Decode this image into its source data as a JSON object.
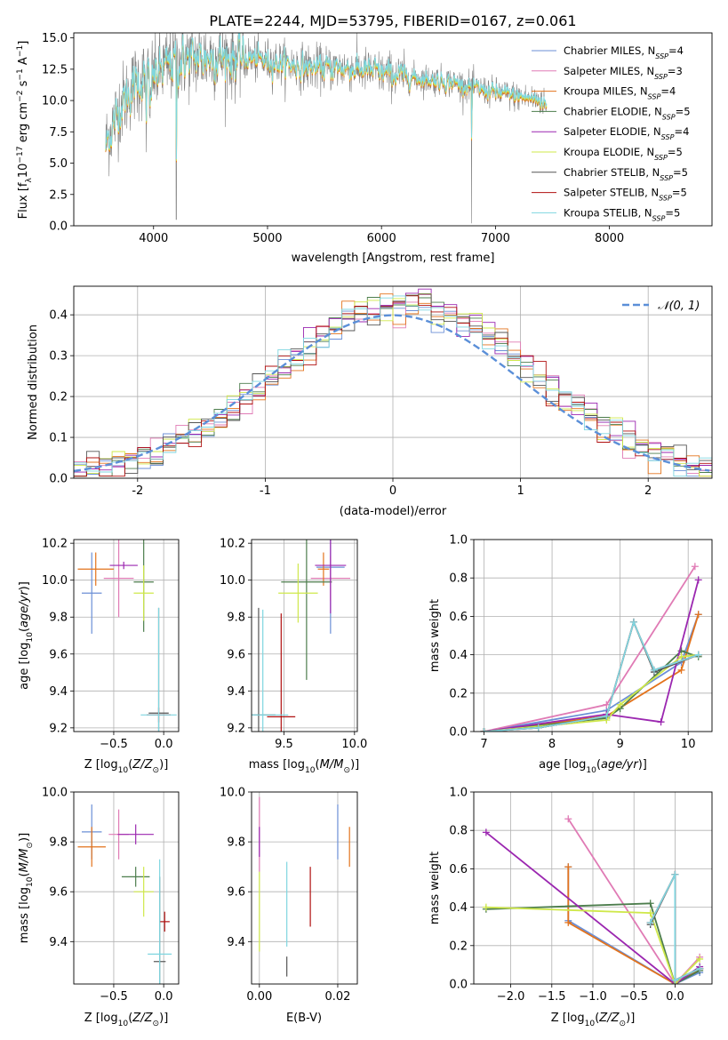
{
  "title": "PLATE=2244, MJD=53795, FIBERID=0167, z=0.061",
  "colors": {
    "chabrier_miles": "#6b8fd6",
    "salpeter_miles": "#e07bb5",
    "kroupa_miles": "#e3731c",
    "chabrier_elodie": "#4c7d4c",
    "salpeter_elodie": "#9b27b0",
    "kroupa_elodie": "#cfe84a",
    "chabrier_stelib": "#555555",
    "salpeter_stelib": "#b01010",
    "kroupa_stelib": "#7fd6e0",
    "spectrum": "#808080",
    "normal": "#5b8fd8"
  },
  "legend_spectrum": [
    "Chabrier MILES, N_SSP=4",
    "Salpeter MILES, N_SSP=3",
    "Kroupa MILES, N_SSP=4",
    "Chabrier ELODIE, N_SSP=5",
    "Salpeter ELODIE, N_SSP=4",
    "Kroupa ELODIE, N_SSP=5",
    "Chabrier STELIB, N_SSP=5",
    "Salpeter STELIB, N_SSP=5",
    "Kroupa STELIB, N_SSP=5"
  ],
  "legend_normal": "𝒩(0, 1)",
  "chart_data": [
    {
      "panel": "spectrum",
      "type": "line",
      "xlabel": "wavelength [Angstrom, rest frame]",
      "ylabel": "Flux [f_λ 10^-17 erg cm^-2 s^-1 A^-1]",
      "xlim": [
        3300,
        8900
      ],
      "ylim": [
        0,
        15.4
      ],
      "xticks": [
        4000,
        5000,
        6000,
        7000,
        8000
      ],
      "yticks": [
        0.0,
        2.5,
        5.0,
        7.5,
        10.0,
        12.5,
        15.0
      ],
      "wavelength_range": [
        3580,
        7450
      ],
      "approx_continuum": {
        "x": [
          3580,
          3700,
          3850,
          4000,
          4200,
          4500,
          4800,
          5100,
          5400,
          5700,
          6000,
          6300,
          6600,
          6900,
          7200,
          7400,
          7450
        ],
        "y": [
          6.5,
          9.5,
          11.5,
          12.0,
          13.2,
          13.5,
          13.4,
          13.0,
          12.6,
          12.6,
          12.2,
          11.8,
          11.5,
          10.8,
          10.3,
          10.0,
          9.5
        ]
      }
    },
    {
      "panel": "residual_histogram",
      "type": "line",
      "xlabel": "(data-model)/error",
      "ylabel": "Normed distribution",
      "xlim": [
        -2.5,
        2.5
      ],
      "ylim": [
        0,
        0.47
      ],
      "xticks": [
        -2,
        -1,
        0,
        1,
        2
      ],
      "yticks": [
        0.0,
        0.1,
        0.2,
        0.3,
        0.4
      ],
      "bin_width": 0.1,
      "normal_curve": {
        "mean": 0,
        "sigma": 1
      }
    },
    {
      "panel": "age_vs_Z",
      "type": "scatter",
      "xlabel": "Z [log10(Z/Z⊙)]",
      "ylabel": "age  [log10(age/yr)]",
      "xlim": [
        -0.9,
        0.15
      ],
      "ylim": [
        9.18,
        10.22
      ],
      "xticks": [
        -0.5,
        0.0
      ],
      "xticklabels": [
        "−0.5",
        "0.0"
      ],
      "yticks": [
        9.2,
        9.4,
        9.6,
        9.8,
        10.0,
        10.2
      ],
      "points": [
        {
          "model": "chabrier_miles",
          "x": -0.72,
          "xerr": 0.1,
          "y": 9.93,
          "yerr": 0.22
        },
        {
          "model": "salpeter_miles",
          "x": -0.45,
          "xerr": 0.15,
          "y": 10.01,
          "yerr": 0.21
        },
        {
          "model": "kroupa_miles",
          "x": -0.68,
          "xerr": 0.18,
          "y": 10.06,
          "yerr": 0.09
        },
        {
          "model": "chabrier_elodie",
          "x": -0.2,
          "xerr": 0.1,
          "y": 9.99,
          "yerr": 0.27
        },
        {
          "model": "salpeter_elodie",
          "x": -0.4,
          "xerr": 0.14,
          "y": 10.08,
          "yerr": 0.02
        },
        {
          "model": "kroupa_elodie",
          "x": -0.2,
          "xerr": 0.1,
          "y": 9.93,
          "yerr": 0.15
        },
        {
          "model": "chabrier_stelib",
          "x": -0.05,
          "xerr": 0.1,
          "y": 9.28,
          "yerr": 0.57
        },
        {
          "model": "salpeter_stelib",
          "x": -0.05,
          "xerr": 0.12,
          "y": 9.27,
          "yerr": 0.04
        },
        {
          "model": "kroupa_stelib",
          "x": -0.05,
          "xerr": 0.18,
          "y": 9.27,
          "yerr": 0.58
        }
      ]
    },
    {
      "panel": "age_vs_mass",
      "type": "scatter",
      "xlabel": "mass [log10(M/M⊙)]",
      "ylabel": "",
      "xlim": [
        9.27,
        10.02
      ],
      "ylim": [
        9.18,
        10.22
      ],
      "xticks": [
        9.5,
        10.0
      ],
      "yticks": [
        9.2,
        9.4,
        9.6,
        9.8,
        10.0,
        10.2
      ],
      "points": [
        {
          "model": "chabrier_miles",
          "x": 9.83,
          "xerr": 0.1,
          "y": 10.07,
          "yerr": 0.36
        },
        {
          "model": "salpeter_miles",
          "x": 9.83,
          "xerr": 0.14,
          "y": 10.01,
          "yerr": 0.12
        },
        {
          "model": "kroupa_miles",
          "x": 9.78,
          "xerr": 0.04,
          "y": 10.06,
          "yerr": 0.09
        },
        {
          "model": "chabrier_elodie",
          "x": 9.66,
          "xerr": 0.18,
          "y": 9.99,
          "yerr": 0.53
        },
        {
          "model": "salpeter_elodie",
          "x": 9.83,
          "xerr": 0.11,
          "y": 10.08,
          "yerr": 0.26
        },
        {
          "model": "kroupa_elodie",
          "x": 9.6,
          "xerr": 0.14,
          "y": 9.93,
          "yerr": 0.16
        },
        {
          "model": "chabrier_stelib",
          "x": 9.32,
          "xerr": 0.12,
          "y": 9.27,
          "yerr": 0.58
        },
        {
          "model": "salpeter_stelib",
          "x": 9.48,
          "xerr": 0.1,
          "y": 9.26,
          "yerr": 0.56
        },
        {
          "model": "kroupa_stelib",
          "x": 9.35,
          "xerr": 0.18,
          "y": 9.27,
          "yerr": 0.57
        }
      ]
    },
    {
      "panel": "mass_weight_vs_age",
      "type": "line",
      "xlabel": "age  [log10(age/yr)]",
      "ylabel": "mass weight",
      "xlim": [
        6.85,
        10.35
      ],
      "ylim": [
        0,
        1.0
      ],
      "xticks": [
        7,
        8,
        9,
        10
      ],
      "yticks": [
        0.0,
        0.2,
        0.4,
        0.6,
        0.8,
        1.0
      ],
      "series": [
        {
          "model": "chabrier_miles",
          "x": [
            7.0,
            8.8,
            9.9,
            10.15
          ],
          "y": [
            0.0,
            0.11,
            0.36,
            0.61
          ]
        },
        {
          "model": "salpeter_miles",
          "x": [
            7.0,
            8.8,
            10.1
          ],
          "y": [
            0.0,
            0.14,
            0.86
          ]
        },
        {
          "model": "kroupa_miles",
          "x": [
            7.0,
            8.8,
            9.9,
            10.15
          ],
          "y": [
            0.0,
            0.08,
            0.32,
            0.61
          ]
        },
        {
          "model": "chabrier_elodie",
          "x": [
            7.0,
            8.8,
            9.0,
            9.9,
            10.15
          ],
          "y": [
            0.0,
            0.07,
            0.12,
            0.42,
            0.39
          ]
        },
        {
          "model": "salpeter_elodie",
          "x": [
            7.0,
            8.8,
            9.6,
            10.15
          ],
          "y": [
            0.0,
            0.09,
            0.05,
            0.79
          ]
        },
        {
          "model": "kroupa_elodie",
          "x": [
            7.0,
            8.8,
            9.0,
            9.9,
            10.15
          ],
          "y": [
            0.0,
            0.06,
            0.14,
            0.39,
            0.4
          ]
        },
        {
          "model": "chabrier_stelib",
          "x": [
            7.0,
            7.8,
            8.8,
            9.2,
            9.5,
            10.15
          ],
          "y": [
            0.0,
            0.02,
            0.08,
            0.57,
            0.31,
            0.4
          ]
        },
        {
          "model": "salpeter_stelib",
          "x": [
            7.0,
            7.8,
            8.8,
            9.2,
            9.5,
            10.15
          ],
          "y": [
            0.0,
            0.02,
            0.08,
            0.57,
            0.32,
            0.4
          ]
        },
        {
          "model": "kroupa_stelib",
          "x": [
            7.0,
            7.8,
            8.8,
            9.2,
            9.5,
            10.15
          ],
          "y": [
            0.0,
            0.02,
            0.08,
            0.57,
            0.32,
            0.4
          ]
        }
      ]
    },
    {
      "panel": "mass_vs_Z",
      "type": "scatter",
      "xlabel": "Z [log10(Z/Z⊙)]",
      "ylabel": "mass [log10(M/M⊙)]",
      "xlim": [
        -0.9,
        0.15
      ],
      "ylim": [
        9.23,
        10.0
      ],
      "xticks": [
        -0.5,
        0.0
      ],
      "xticklabels": [
        "−0.5",
        "0.0"
      ],
      "yticks": [
        9.4,
        9.6,
        9.8,
        10.0
      ],
      "points": [
        {
          "model": "chabrier_miles",
          "x": -0.72,
          "xerr": 0.1,
          "y": 9.84,
          "yerr": 0.11
        },
        {
          "model": "salpeter_miles",
          "x": -0.45,
          "xerr": 0.1,
          "y": 9.83,
          "yerr": 0.1
        },
        {
          "model": "kroupa_miles",
          "x": -0.72,
          "xerr": 0.14,
          "y": 9.78,
          "yerr": 0.08
        },
        {
          "model": "chabrier_elodie",
          "x": -0.28,
          "xerr": 0.14,
          "y": 9.66,
          "yerr": 0.04
        },
        {
          "model": "salpeter_elodie",
          "x": -0.28,
          "xerr": 0.18,
          "y": 9.83,
          "yerr": 0.04
        },
        {
          "model": "kroupa_elodie",
          "x": -0.2,
          "xerr": 0.1,
          "y": 9.6,
          "yerr": 0.1
        },
        {
          "model": "chabrier_stelib",
          "x": -0.04,
          "xerr": 0.06,
          "y": 9.32,
          "yerr": 0.34
        },
        {
          "model": "salpeter_stelib",
          "x": 0.01,
          "xerr": 0.05,
          "y": 9.48,
          "yerr": 0.04
        },
        {
          "model": "kroupa_stelib",
          "x": -0.04,
          "xerr": 0.12,
          "y": 9.35,
          "yerr": 0.38
        }
      ]
    },
    {
      "panel": "mass_vs_ebv",
      "type": "scatter",
      "xlabel": "E(B-V)",
      "ylabel": "",
      "xlim": [
        -0.002,
        0.025
      ],
      "ylim": [
        9.23,
        10.0
      ],
      "xticks": [
        0.0,
        0.02
      ],
      "yticks": [
        9.4,
        9.6,
        9.8,
        10.0
      ],
      "points": [
        {
          "model": "chabrier_miles",
          "x": 0.02,
          "y": 9.84,
          "yerr": 0.11
        },
        {
          "model": "salpeter_miles",
          "x": 0.0,
          "y": 9.83,
          "yerr": 0.15
        },
        {
          "model": "kroupa_miles",
          "x": 0.023,
          "y": 9.78,
          "yerr": 0.08
        },
        {
          "model": "salpeter_elodie",
          "x": 0.0,
          "y": 9.8,
          "yerr": 0.06
        },
        {
          "model": "kroupa_elodie",
          "x": 0.0,
          "y": 9.52,
          "yerr": 0.16
        },
        {
          "model": "chabrier_stelib",
          "x": 0.007,
          "y": 9.3,
          "yerr": 0.04
        },
        {
          "model": "salpeter_stelib",
          "x": 0.013,
          "y": 9.58,
          "yerr": 0.12
        },
        {
          "model": "kroupa_stelib",
          "x": 0.007,
          "y": 9.55,
          "yerr": 0.17
        }
      ]
    },
    {
      "panel": "mass_weight_vs_Z",
      "type": "line",
      "xlabel": "Z [log10(Z/Z⊙)]",
      "ylabel": "mass weight",
      "xlim": [
        -2.45,
        0.45
      ],
      "ylim": [
        0,
        1.0
      ],
      "xticks": [
        -2.0,
        -1.5,
        -1.0,
        -0.5,
        0.0
      ],
      "xticklabels": [
        "−2.0",
        "−1.5",
        "−1.0",
        "−0.5",
        "0.0"
      ],
      "yticks": [
        0.0,
        0.2,
        0.4,
        0.6,
        0.8,
        1.0
      ],
      "series": [
        {
          "model": "chabrier_miles",
          "x": [
            -1.3,
            -1.3,
            0.0,
            0.3
          ],
          "y": [
            0.61,
            0.33,
            0.0,
            0.06
          ]
        },
        {
          "model": "salpeter_miles",
          "x": [
            -1.3,
            0.0,
            0.3
          ],
          "y": [
            0.86,
            0.0,
            0.14
          ]
        },
        {
          "model": "kroupa_miles",
          "x": [
            -1.3,
            -1.3,
            0.0,
            0.3
          ],
          "y": [
            0.61,
            0.32,
            0.0,
            0.08
          ]
        },
        {
          "model": "chabrier_elodie",
          "x": [
            -2.3,
            -0.3,
            0.0,
            0.3
          ],
          "y": [
            0.39,
            0.42,
            0.0,
            0.07
          ]
        },
        {
          "model": "salpeter_elodie",
          "x": [
            -2.3,
            0.0,
            0.3
          ],
          "y": [
            0.79,
            0.0,
            0.09
          ]
        },
        {
          "model": "kroupa_elodie",
          "x": [
            -2.3,
            -0.3,
            0.0,
            0.3
          ],
          "y": [
            0.4,
            0.37,
            0.0,
            0.13
          ]
        },
        {
          "model": "chabrier_stelib",
          "x": [
            -0.3,
            0.0,
            0.0,
            0.3
          ],
          "y": [
            0.31,
            0.57,
            0.02,
            0.08
          ]
        },
        {
          "model": "salpeter_stelib",
          "x": [
            -0.3,
            0.0,
            0.0,
            0.3
          ],
          "y": [
            0.32,
            0.57,
            0.02,
            0.08
          ]
        },
        {
          "model": "kroupa_stelib",
          "x": [
            -0.3,
            0.0,
            0.0,
            0.3
          ],
          "y": [
            0.32,
            0.57,
            0.02,
            0.08
          ]
        }
      ]
    }
  ]
}
